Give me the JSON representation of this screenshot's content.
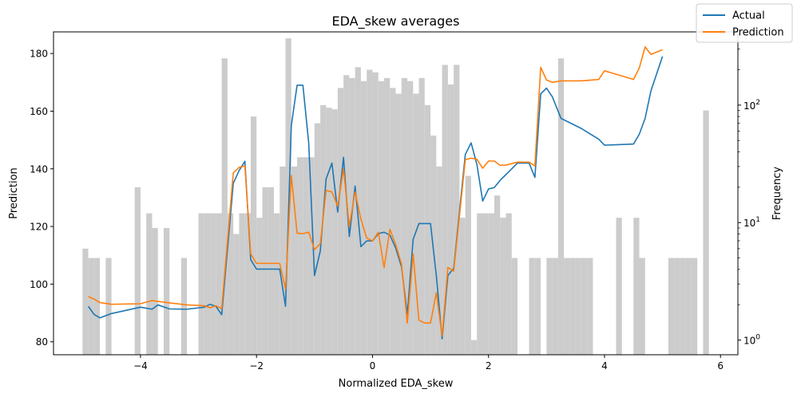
{
  "chart_data": {
    "type": "line",
    "title": "EDA_skew averages",
    "xlabel": "Normalized EDA_skew",
    "ylabel": "Prediction",
    "y2label": "Frequency",
    "xlim": [
      -5.5,
      6.3
    ],
    "ylim": [
      75.5,
      187.5
    ],
    "y2lim": [
      0.75,
      420
    ],
    "y2scale": "log",
    "grid": false,
    "legend_position": "top-right",
    "xticks": [
      -4,
      -2,
      0,
      2,
      4,
      6
    ],
    "yticks": [
      80,
      100,
      120,
      140,
      160,
      180
    ],
    "y2ticks": [
      1,
      10,
      100
    ],
    "y2ticklabels": [
      "10^0",
      "10^1",
      "10^2"
    ],
    "histogram": {
      "color": "#cccccc",
      "bin_width": 0.1,
      "bins": [
        [
          -4.95,
          6
        ],
        [
          -4.85,
          5
        ],
        [
          -4.75,
          5
        ],
        [
          -4.55,
          5
        ],
        [
          -4.05,
          20
        ],
        [
          -3.85,
          12
        ],
        [
          -3.75,
          9
        ],
        [
          -3.55,
          9
        ],
        [
          -3.25,
          5
        ],
        [
          -2.95,
          12
        ],
        [
          -2.85,
          12
        ],
        [
          -2.75,
          12
        ],
        [
          -2.65,
          12
        ],
        [
          -2.55,
          250
        ],
        [
          -2.45,
          12
        ],
        [
          -2.35,
          8
        ],
        [
          -2.25,
          12
        ],
        [
          -2.15,
          12
        ],
        [
          -2.05,
          80
        ],
        [
          -1.95,
          11
        ],
        [
          -1.85,
          20
        ],
        [
          -1.75,
          20
        ],
        [
          -1.65,
          12
        ],
        [
          -1.55,
          30
        ],
        [
          -1.45,
          370
        ],
        [
          -1.35,
          30
        ],
        [
          -1.25,
          36
        ],
        [
          -1.15,
          36
        ],
        [
          -1.05,
          36
        ],
        [
          -0.95,
          70
        ],
        [
          -0.85,
          100
        ],
        [
          -0.75,
          95
        ],
        [
          -0.65,
          92
        ],
        [
          -0.55,
          140
        ],
        [
          -0.45,
          180
        ],
        [
          -0.35,
          170
        ],
        [
          -0.25,
          210
        ],
        [
          -0.15,
          160
        ],
        [
          -0.05,
          200
        ],
        [
          0.05,
          190
        ],
        [
          0.15,
          160
        ],
        [
          0.25,
          170
        ],
        [
          0.35,
          140
        ],
        [
          0.45,
          125
        ],
        [
          0.55,
          170
        ],
        [
          0.65,
          160
        ],
        [
          0.75,
          125
        ],
        [
          0.85,
          170
        ],
        [
          0.95,
          100
        ],
        [
          1.05,
          55
        ],
        [
          1.15,
          30
        ],
        [
          1.25,
          220
        ],
        [
          1.35,
          150
        ],
        [
          1.45,
          220
        ],
        [
          1.55,
          11
        ],
        [
          1.65,
          25
        ],
        [
          1.75,
          1
        ],
        [
          1.85,
          12
        ],
        [
          1.95,
          12
        ],
        [
          2.05,
          12
        ],
        [
          2.15,
          17
        ],
        [
          2.25,
          11
        ],
        [
          2.35,
          12
        ],
        [
          2.45,
          5
        ],
        [
          2.75,
          5
        ],
        [
          2.85,
          5
        ],
        [
          3.05,
          5
        ],
        [
          3.15,
          5
        ],
        [
          3.25,
          250
        ],
        [
          3.35,
          5
        ],
        [
          3.45,
          5
        ],
        [
          3.55,
          5
        ],
        [
          3.65,
          5
        ],
        [
          3.75,
          5
        ],
        [
          4.25,
          11
        ],
        [
          4.55,
          11
        ],
        [
          4.65,
          5
        ],
        [
          5.15,
          5
        ],
        [
          5.25,
          5
        ],
        [
          5.35,
          5
        ],
        [
          5.45,
          5
        ],
        [
          5.55,
          5
        ],
        [
          5.75,
          90
        ]
      ]
    },
    "series": [
      {
        "name": "Actual",
        "color": "#1f77b4",
        "points": [
          [
            -4.9,
            92.3
          ],
          [
            -4.8,
            89.5
          ],
          [
            -4.7,
            88.3
          ],
          [
            -4.5,
            89.8
          ],
          [
            -4.0,
            92.0
          ],
          [
            -3.8,
            91.3
          ],
          [
            -3.7,
            92.8
          ],
          [
            -3.5,
            91.4
          ],
          [
            -3.2,
            91.3
          ],
          [
            -2.9,
            92.0
          ],
          [
            -2.8,
            93.0
          ],
          [
            -2.7,
            92.3
          ],
          [
            -2.6,
            89.4
          ],
          [
            -2.4,
            135.0
          ],
          [
            -2.3,
            139.4
          ],
          [
            -2.2,
            142.6
          ],
          [
            -2.1,
            108.5
          ],
          [
            -2.0,
            105.2
          ],
          [
            -1.8,
            105.2
          ],
          [
            -1.6,
            105.2
          ],
          [
            -1.5,
            92.3
          ],
          [
            -1.4,
            155.0
          ],
          [
            -1.3,
            169.0
          ],
          [
            -1.2,
            169.0
          ],
          [
            -1.1,
            149.0
          ],
          [
            -1.0,
            103.0
          ],
          [
            -0.9,
            111.5
          ],
          [
            -0.8,
            136.5
          ],
          [
            -0.7,
            142.0
          ],
          [
            -0.6,
            125.0
          ],
          [
            -0.5,
            144.0
          ],
          [
            -0.4,
            116.5
          ],
          [
            -0.3,
            134.0
          ],
          [
            -0.2,
            113.0
          ],
          [
            -0.1,
            115.0
          ],
          [
            0.0,
            115.0
          ],
          [
            0.1,
            117.5
          ],
          [
            0.2,
            118.0
          ],
          [
            0.3,
            117.0
          ],
          [
            0.4,
            112.5
          ],
          [
            0.5,
            106.0
          ],
          [
            0.6,
            89.5
          ],
          [
            0.7,
            115.5
          ],
          [
            0.8,
            121.0
          ],
          [
            0.9,
            121.0
          ],
          [
            1.0,
            121.0
          ],
          [
            1.1,
            103.0
          ],
          [
            1.2,
            81.0
          ],
          [
            1.3,
            103.0
          ],
          [
            1.4,
            105.5
          ],
          [
            1.6,
            145.0
          ],
          [
            1.7,
            149.0
          ],
          [
            1.8,
            141.5
          ],
          [
            1.9,
            128.8
          ],
          [
            2.0,
            133.0
          ],
          [
            2.1,
            133.5
          ],
          [
            2.2,
            136.0
          ],
          [
            2.3,
            138.0
          ],
          [
            2.5,
            142.0
          ],
          [
            2.7,
            142.0
          ],
          [
            2.8,
            137.0
          ],
          [
            2.9,
            166.0
          ],
          [
            3.0,
            168.0
          ],
          [
            3.1,
            165.0
          ],
          [
            3.25,
            157.5
          ],
          [
            3.6,
            154.0
          ],
          [
            3.9,
            150.3
          ],
          [
            4.0,
            148.2
          ],
          [
            4.5,
            148.6
          ],
          [
            4.6,
            152.0
          ],
          [
            4.7,
            157.5
          ],
          [
            4.8,
            167.0
          ],
          [
            5.0,
            179.0
          ]
        ]
      },
      {
        "name": "Prediction",
        "color": "#ff7f0e",
        "points": [
          [
            -4.9,
            95.7
          ],
          [
            -4.8,
            94.8
          ],
          [
            -4.7,
            93.6
          ],
          [
            -4.5,
            93.0
          ],
          [
            -4.0,
            93.2
          ],
          [
            -3.8,
            94.3
          ],
          [
            -3.7,
            94.0
          ],
          [
            -3.5,
            93.5
          ],
          [
            -3.2,
            92.8
          ],
          [
            -2.9,
            92.5
          ],
          [
            -2.8,
            91.8
          ],
          [
            -2.7,
            92.5
          ],
          [
            -2.6,
            91.5
          ],
          [
            -2.4,
            138.6
          ],
          [
            -2.3,
            140.5
          ],
          [
            -2.2,
            141.0
          ],
          [
            -2.1,
            110.5
          ],
          [
            -2.0,
            107.2
          ],
          [
            -1.8,
            107.2
          ],
          [
            -1.6,
            107.2
          ],
          [
            -1.5,
            98.3
          ],
          [
            -1.4,
            137.7
          ],
          [
            -1.3,
            117.7
          ],
          [
            -1.2,
            117.5
          ],
          [
            -1.1,
            118.0
          ],
          [
            -1.0,
            112.0
          ],
          [
            -0.9,
            114.0
          ],
          [
            -0.8,
            132.5
          ],
          [
            -0.7,
            132.0
          ],
          [
            -0.6,
            127.0
          ],
          [
            -0.5,
            140.0
          ],
          [
            -0.4,
            120.0
          ],
          [
            -0.3,
            132.0
          ],
          [
            -0.2,
            122.5
          ],
          [
            -0.1,
            116.0
          ],
          [
            0.0,
            115.0
          ],
          [
            0.1,
            118.0
          ],
          [
            0.2,
            105.7
          ],
          [
            0.3,
            119.0
          ],
          [
            0.4,
            113.7
          ],
          [
            0.5,
            107.0
          ],
          [
            0.6,
            86.5
          ],
          [
            0.7,
            110.5
          ],
          [
            0.8,
            87.5
          ],
          [
            0.9,
            86.5
          ],
          [
            1.0,
            86.5
          ],
          [
            1.1,
            97.0
          ],
          [
            1.2,
            82.0
          ],
          [
            1.3,
            105.8
          ],
          [
            1.4,
            104.5
          ],
          [
            1.6,
            143.2
          ],
          [
            1.7,
            143.7
          ],
          [
            1.8,
            143.3
          ],
          [
            1.9,
            140.2
          ],
          [
            2.0,
            142.7
          ],
          [
            2.1,
            142.7
          ],
          [
            2.2,
            141.2
          ],
          [
            2.3,
            141.3
          ],
          [
            2.5,
            142.3
          ],
          [
            2.7,
            142.3
          ],
          [
            2.8,
            141.0
          ],
          [
            2.9,
            175.2
          ],
          [
            3.0,
            170.8
          ],
          [
            3.1,
            170.0
          ],
          [
            3.25,
            170.5
          ],
          [
            3.6,
            170.5
          ],
          [
            3.9,
            171.0
          ],
          [
            4.0,
            174.0
          ],
          [
            4.5,
            171.0
          ],
          [
            4.6,
            175.0
          ],
          [
            4.7,
            182.3
          ],
          [
            4.8,
            179.7
          ],
          [
            5.0,
            181.3
          ]
        ]
      }
    ]
  }
}
